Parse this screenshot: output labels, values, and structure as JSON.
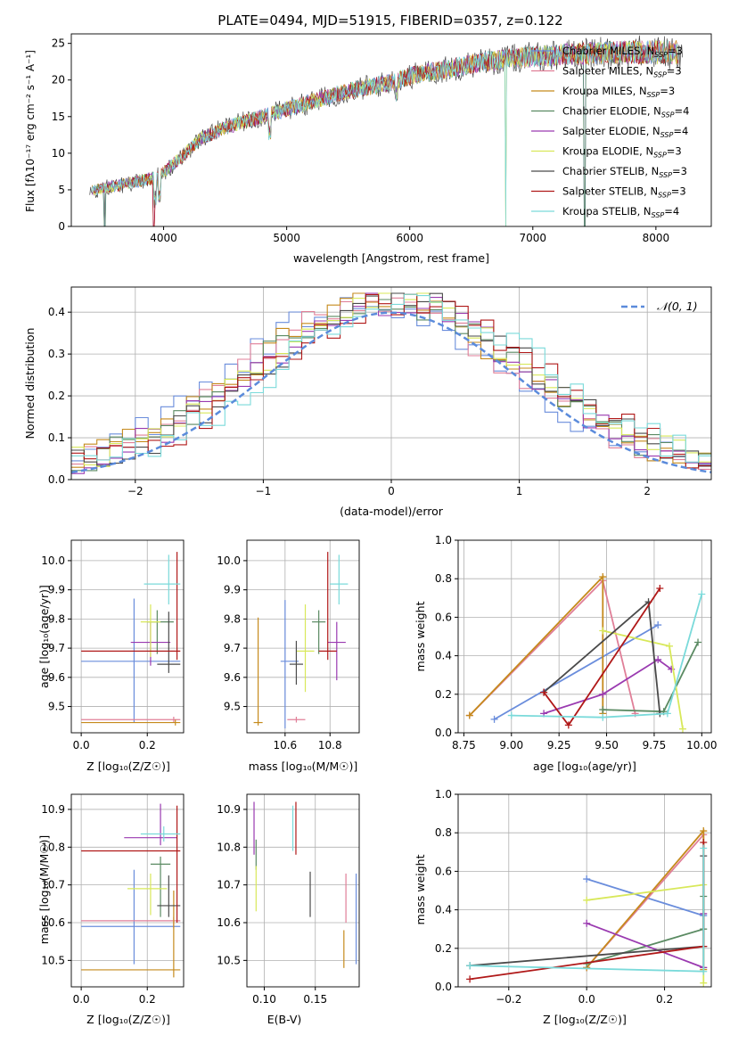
{
  "figure": {
    "title": "PLATE=0494, MJD=51915, FIBERID=0357, z=0.122"
  },
  "labels": {
    "spec_x": "wavelength [Angstrom, rest frame]",
    "spec_y": "Flux [fλ10⁻¹⁷ erg cm⁻² s⁻¹ A⁻¹]",
    "hist_x": "(data-model)/error",
    "hist_y": "Normed distribution",
    "hist_legend": "𝒩(0, 1)",
    "age_y": "age  [log₁₀(age/yr)]",
    "z_x": "Z [log₁₀(Z/Z☉)]",
    "mass_x": "mass [log₁₀(M/M☉)]",
    "mass_y": "mass [log₁₀(M/M☉)]",
    "ebv_x": "E(B-V)",
    "mw_y": "mass weight",
    "agex_x": "age  [log₁₀(age/yr)]"
  },
  "models": [
    {
      "name": "Chabrier MILES, N_SSP=3",
      "base": "Chabrier MILES, N",
      "sub": "SSP",
      "tail": "=3",
      "color": "#6a8ddc"
    },
    {
      "name": "Salpeter MILES, N_SSP=3",
      "base": "Salpeter MILES, N",
      "sub": "SSP",
      "tail": "=3",
      "color": "#e07f98"
    },
    {
      "name": "Kroupa MILES, N_SSP=3",
      "base": "Kroupa MILES, N",
      "sub": "SSP",
      "tail": "=3",
      "color": "#c58a1c"
    },
    {
      "name": "Chabrier ELODIE, N_SSP=4",
      "base": "Chabrier ELODIE, N",
      "sub": "SSP",
      "tail": "=4",
      "color": "#5a8a62"
    },
    {
      "name": "Salpeter ELODIE, N_SSP=4",
      "base": "Salpeter ELODIE, N",
      "sub": "SSP",
      "tail": "=4",
      "color": "#9a3ab0"
    },
    {
      "name": "Kroupa ELODIE, N_SSP=3",
      "base": "Kroupa ELODIE, N",
      "sub": "SSP",
      "tail": "=3",
      "color": "#d8e85a"
    },
    {
      "name": "Chabrier STELIB, N_SSP=3",
      "base": "Chabrier STELIB, N",
      "sub": "SSP",
      "tail": "=3",
      "color": "#4a4a4a"
    },
    {
      "name": "Salpeter STELIB, N_SSP=3",
      "base": "Salpeter STELIB, N",
      "sub": "SSP",
      "tail": "=3",
      "color": "#b01818"
    },
    {
      "name": "Kroupa STELIB, N_SSP=4",
      "base": "Kroupa STELIB, N",
      "sub": "SSP",
      "tail": "=4",
      "color": "#7adada"
    }
  ],
  "chart_data": [
    {
      "id": "spectrum",
      "type": "line",
      "title": "PLATE=0494, MJD=51915, FIBERID=0357, z=0.122",
      "xlabel": "wavelength [Angstrom, rest frame]",
      "ylabel": "Flux [fλ10⁻¹⁷ erg cm⁻² s⁻¹ A⁻¹]",
      "xlim": [
        3250,
        8450
      ],
      "ylim": [
        0,
        26.3
      ],
      "xticks": [
        4000,
        5000,
        6000,
        7000,
        8000
      ],
      "yticks": [
        0,
        5,
        10,
        15,
        20,
        25
      ],
      "continuum": [
        [
          3400,
          4.8
        ],
        [
          3600,
          5.5
        ],
        [
          3800,
          6.2
        ],
        [
          3950,
          6.8
        ],
        [
          4100,
          8.8
        ],
        [
          4300,
          12
        ],
        [
          4500,
          13.5
        ],
        [
          4800,
          15
        ],
        [
          5000,
          16
        ],
        [
          5200,
          17
        ],
        [
          5500,
          18.5
        ],
        [
          5800,
          19.5
        ],
        [
          6000,
          20.5
        ],
        [
          6300,
          21.5
        ],
        [
          6600,
          22.5
        ],
        [
          7000,
          23.2
        ],
        [
          7400,
          23.6
        ],
        [
          7800,
          23.8
        ],
        [
          8200,
          23.8
        ]
      ],
      "notes": "9 overlapping model spectra; dips to zero near 3520, 3920, 6780, 7420 Å"
    },
    {
      "id": "residuals",
      "type": "bar",
      "xlabel": "(data-model)/error",
      "ylabel": "Normed distribution",
      "xlim": [
        -2.5,
        2.5
      ],
      "ylim": [
        0,
        0.46
      ],
      "xticks": [
        -2,
        -1,
        0,
        1,
        2
      ],
      "yticks": [
        0.0,
        0.1,
        0.2,
        0.3,
        0.4
      ],
      "bin_width": 0.1,
      "legend": "𝒩(0, 1)"
    },
    {
      "id": "age_vs_Z",
      "type": "scatter",
      "xlabel": "Z [log₁₀(Z/Z☉)]",
      "ylabel": "age  [log₁₀(age/yr)]",
      "xlim": [
        -0.03,
        0.31
      ],
      "ylim": [
        9.41,
        10.07
      ],
      "xticks": [
        0.0,
        0.2
      ],
      "yticks": [
        9.5,
        9.6,
        9.7,
        9.8,
        9.9,
        10.0
      ],
      "points": [
        {
          "x": 0.16,
          "y": 9.655,
          "xerr": [
            0.16,
            0.14
          ],
          "yerr": [
            0.21,
            0.215
          ]
        },
        {
          "x": 0.28,
          "y": 9.455,
          "xerr": [
            0.28,
            0.02
          ],
          "yerr": [
            0.01,
            0.01
          ]
        },
        {
          "x": 0.285,
          "y": 9.445,
          "xerr": [
            0.285,
            0.015
          ],
          "yerr": [
            0.01,
            0.01
          ]
        },
        {
          "x": 0.23,
          "y": 9.79,
          "xerr": [
            0.03,
            0.05
          ],
          "yerr": [
            0.11,
            0.04
          ]
        },
        {
          "x": 0.21,
          "y": 9.72,
          "xerr": [
            0.06,
            0.06
          ],
          "yerr": [
            0.08,
            0.07
          ]
        },
        {
          "x": 0.21,
          "y": 9.79,
          "xerr": [
            0.03,
            0.03
          ],
          "yerr": [
            0.12,
            0.06
          ]
        },
        {
          "x": 0.265,
          "y": 9.645,
          "xerr": [
            0.035,
            0.035
          ],
          "yerr": [
            0.03,
            0.18
          ]
        },
        {
          "x": 0.29,
          "y": 9.69,
          "xerr": [
            0.29,
            0.01
          ],
          "yerr": [
            0.03,
            0.34
          ]
        },
        {
          "x": 0.265,
          "y": 9.92,
          "xerr": [
            0.075,
            0.035
          ],
          "yerr": [
            0.07,
            0.1
          ]
        }
      ]
    },
    {
      "id": "age_vs_mass",
      "type": "scatter",
      "xlabel": "mass [log₁₀(M/M☉)]",
      "ylabel": "",
      "xlim": [
        10.43,
        10.93
      ],
      "ylim": [
        9.41,
        10.07
      ],
      "xticks": [
        10.6,
        10.8
      ],
      "yticks": [
        9.5,
        9.6,
        9.7,
        9.8,
        9.9,
        10.0
      ],
      "points": [
        {
          "x": 10.6,
          "y": 9.655,
          "xerr": [
            0.02,
            0.06
          ],
          "yerr": [
            0.23,
            0.21
          ]
        },
        {
          "x": 10.65,
          "y": 9.455,
          "xerr": [
            0.04,
            0.04
          ],
          "yerr": [
            0.01,
            0.01
          ]
        },
        {
          "x": 10.48,
          "y": 9.445,
          "xerr": [
            0.02,
            0.02
          ],
          "yerr": [
            0.01,
            0.36
          ]
        },
        {
          "x": 10.75,
          "y": 9.79,
          "xerr": [
            0.03,
            0.03
          ],
          "yerr": [
            0.11,
            0.04
          ]
        },
        {
          "x": 10.83,
          "y": 9.72,
          "xerr": [
            0.04,
            0.04
          ],
          "yerr": [
            0.13,
            0.07
          ]
        },
        {
          "x": 10.69,
          "y": 9.69,
          "xerr": [
            0.04,
            0.04
          ],
          "yerr": [
            0.14,
            0.16
          ]
        },
        {
          "x": 10.65,
          "y": 9.645,
          "xerr": [
            0.03,
            0.03
          ],
          "yerr": [
            0.07,
            0.08
          ]
        },
        {
          "x": 10.79,
          "y": 9.69,
          "xerr": [
            0.04,
            0.04
          ],
          "yerr": [
            0.03,
            0.34
          ]
        },
        {
          "x": 10.84,
          "y": 9.92,
          "xerr": [
            0.04,
            0.04
          ],
          "yerr": [
            0.07,
            0.1
          ]
        }
      ]
    },
    {
      "id": "mass_weight_vs_age",
      "type": "line",
      "xlabel": "age  [log₁₀(age/yr)]",
      "ylabel": "mass weight",
      "xlim": [
        8.72,
        10.05
      ],
      "ylim": [
        0,
        1.0
      ],
      "xticks": [
        8.75,
        9.0,
        9.25,
        9.5,
        9.75,
        10.0
      ],
      "yticks": [
        0.0,
        0.2,
        0.4,
        0.6,
        0.8,
        1.0
      ],
      "series": [
        {
          "x": [
            8.91,
            9.77
          ],
          "y": [
            0.07,
            0.56
          ]
        },
        {
          "x": [
            8.78,
            9.48,
            9.65
          ],
          "y": [
            0.09,
            0.79,
            0.1
          ]
        },
        {
          "x": [
            8.78,
            9.48,
            9.48
          ],
          "y": [
            0.09,
            0.81,
            0.1
          ]
        },
        {
          "x": [
            9.48,
            9.8,
            9.98
          ],
          "y": [
            0.12,
            0.11,
            0.47
          ]
        },
        {
          "x": [
            9.17,
            9.48,
            9.77,
            9.84
          ],
          "y": [
            0.1,
            0.2,
            0.38,
            0.33
          ]
        },
        {
          "x": [
            9.48,
            9.83,
            9.9
          ],
          "y": [
            0.53,
            0.45,
            0.02
          ]
        },
        {
          "x": [
            9.17,
            9.72,
            9.78
          ],
          "y": [
            0.21,
            0.68,
            0.1
          ]
        },
        {
          "x": [
            9.17,
            9.3,
            9.78
          ],
          "y": [
            0.21,
            0.04,
            0.75
          ]
        },
        {
          "x": [
            9.0,
            9.48,
            9.82,
            10.0
          ],
          "y": [
            0.09,
            0.08,
            0.1,
            0.72
          ]
        }
      ]
    },
    {
      "id": "mass_vs_Z",
      "type": "scatter",
      "xlabel": "Z [log₁₀(Z/Z☉)]",
      "ylabel": "mass [log₁₀(M/M☉)]",
      "xlim": [
        -0.03,
        0.31
      ],
      "ylim": [
        10.43,
        10.94
      ],
      "xticks": [
        0.0,
        0.2
      ],
      "yticks": [
        10.5,
        10.6,
        10.7,
        10.8,
        10.9
      ],
      "points": [
        {
          "x": 0.16,
          "y": 10.59,
          "xerr": [
            0.16,
            0.14
          ],
          "yerr": [
            0.1,
            0.15
          ]
        },
        {
          "x": 0.28,
          "y": 10.605,
          "xerr": [
            0.28,
            0.02
          ],
          "yerr": [
            0.02,
            0.01
          ]
        },
        {
          "x": 0.28,
          "y": 10.475,
          "xerr": [
            0.28,
            0.02
          ],
          "yerr": [
            0.02,
            0.21
          ]
        },
        {
          "x": 0.24,
          "y": 10.755,
          "xerr": [
            0.03,
            0.03
          ],
          "yerr": [
            0.14,
            0.02
          ]
        },
        {
          "x": 0.24,
          "y": 10.825,
          "xerr": [
            0.11,
            0.05
          ],
          "yerr": [
            0.02,
            0.09
          ]
        },
        {
          "x": 0.21,
          "y": 10.69,
          "xerr": [
            0.07,
            0.05
          ],
          "yerr": [
            0.07,
            0.04
          ]
        },
        {
          "x": 0.265,
          "y": 10.645,
          "xerr": [
            0.035,
            0.035
          ],
          "yerr": [
            0.03,
            0.08
          ]
        },
        {
          "x": 0.29,
          "y": 10.79,
          "xerr": [
            0.29,
            0.01
          ],
          "yerr": [
            0.19,
            0.12
          ]
        },
        {
          "x": 0.25,
          "y": 10.835,
          "xerr": [
            0.07,
            0.05
          ],
          "yerr": [
            0.02,
            0.02
          ]
        }
      ]
    },
    {
      "id": "mass_vs_ebv",
      "type": "scatter",
      "xlabel": "E(B-V)",
      "ylabel": "",
      "xlim": [
        0.083,
        0.193
      ],
      "ylim": [
        10.43,
        10.94
      ],
      "xticks": [
        0.1,
        0.15
      ],
      "yticks": [
        10.5,
        10.6,
        10.7,
        10.8,
        10.9
      ],
      "points": [
        {
          "x": 0.19,
          "y": 10.61,
          "yerr": [
            0.12,
            0.12
          ]
        },
        {
          "x": 0.18,
          "y": 10.68,
          "yerr": [
            0.08,
            0.05
          ]
        },
        {
          "x": 0.178,
          "y": 10.53,
          "yerr": [
            0.05,
            0.05
          ]
        },
        {
          "x": 0.092,
          "y": 10.78,
          "yerr": [
            0.04,
            0.04
          ]
        },
        {
          "x": 0.09,
          "y": 10.85,
          "yerr": [
            0.07,
            0.07
          ]
        },
        {
          "x": 0.092,
          "y": 10.69,
          "yerr": [
            0.06,
            0.06
          ]
        },
        {
          "x": 0.145,
          "y": 10.675,
          "yerr": [
            0.06,
            0.06
          ]
        },
        {
          "x": 0.131,
          "y": 10.85,
          "yerr": [
            0.07,
            0.07
          ]
        },
        {
          "x": 0.128,
          "y": 10.85,
          "yerr": [
            0.06,
            0.06
          ]
        }
      ]
    },
    {
      "id": "mass_weight_vs_Z",
      "type": "line",
      "xlabel": "Z [log₁₀(Z/Z☉)]",
      "ylabel": "mass weight",
      "xlim": [
        -0.33,
        0.32
      ],
      "ylim": [
        0,
        1.0
      ],
      "xticks": [
        -0.2,
        0.0,
        0.2
      ],
      "yticks": [
        0.0,
        0.2,
        0.4,
        0.6,
        0.8,
        1.0
      ],
      "series": [
        {
          "x": [
            0.0,
            0.3
          ],
          "y": [
            0.56,
            0.37
          ]
        },
        {
          "x": [
            0.0,
            0.3,
            0.3
          ],
          "y": [
            0.1,
            0.79,
            0.1
          ]
        },
        {
          "x": [
            0.0,
            0.3,
            0.3
          ],
          "y": [
            0.1,
            0.81,
            0.09
          ]
        },
        {
          "x": [
            0.0,
            0.3,
            0.3
          ],
          "y": [
            0.12,
            0.3,
            0.47
          ]
        },
        {
          "x": [
            0.0,
            0.3,
            0.3
          ],
          "y": [
            0.33,
            0.1,
            0.38
          ]
        },
        {
          "x": [
            0.0,
            0.3,
            0.3
          ],
          "y": [
            0.45,
            0.53,
            0.02
          ]
        },
        {
          "x": [
            -0.3,
            0.3,
            0.3
          ],
          "y": [
            0.11,
            0.21,
            0.68
          ]
        },
        {
          "x": [
            -0.3,
            0.3,
            0.3
          ],
          "y": [
            0.04,
            0.21,
            0.75
          ]
        },
        {
          "x": [
            -0.3,
            0.3,
            0.3
          ],
          "y": [
            0.11,
            0.08,
            0.72
          ]
        }
      ]
    }
  ]
}
